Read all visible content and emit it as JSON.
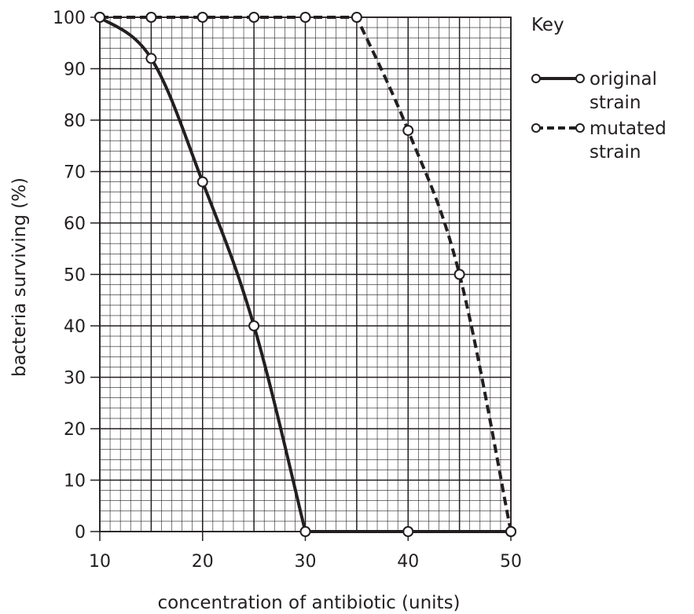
{
  "chart_data": {
    "type": "line",
    "title": "",
    "xlabel": "concentration of antibiotic (units)",
    "ylabel": "bacteria surviving (%)",
    "xlim": [
      10,
      50
    ],
    "ylim": [
      0,
      100
    ],
    "x_ticks": [
      10,
      20,
      30,
      40,
      50
    ],
    "y_ticks": [
      0,
      10,
      20,
      30,
      40,
      50,
      60,
      70,
      80,
      90,
      100
    ],
    "grid": true,
    "legend": {
      "title": "Key",
      "position": "top-right"
    },
    "series": [
      {
        "name": "original strain",
        "legend_lines": [
          "original",
          "strain"
        ],
        "style": "solid",
        "points": [
          [
            10,
            100
          ],
          [
            15,
            92
          ],
          [
            20,
            68
          ],
          [
            25,
            40
          ],
          [
            30,
            0
          ],
          [
            40,
            0
          ],
          [
            50,
            0
          ]
        ]
      },
      {
        "name": "mutated strain",
        "legend_lines": [
          "mutated",
          "strain"
        ],
        "style": "dashed",
        "points": [
          [
            10,
            100
          ],
          [
            15,
            100
          ],
          [
            20,
            100
          ],
          [
            25,
            100
          ],
          [
            30,
            100
          ],
          [
            35,
            100
          ],
          [
            40,
            78
          ],
          [
            45,
            50
          ],
          [
            50,
            0
          ]
        ]
      }
    ],
    "colors": {
      "line": "#231f20",
      "grid": "#231f20",
      "marker_fill": "#ffffff"
    }
  }
}
